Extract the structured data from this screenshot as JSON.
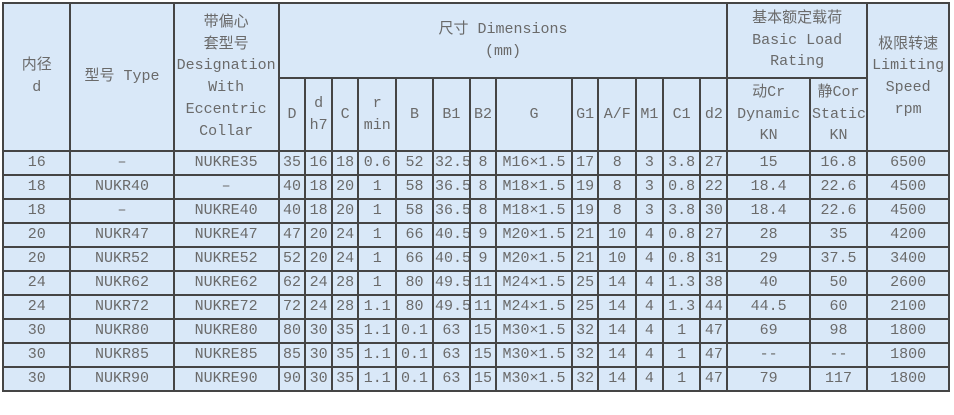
{
  "colors": {
    "table_background": "#d9e8f8",
    "border": "#454545",
    "text": "#6a6a6a"
  },
  "header": {
    "col_inner_diameter": "内径\nd",
    "col_type": "型号 Type",
    "col_designation": "带偏心\n套型号\nDesignation\nWith\nEccentric\nCollar",
    "col_dimensions": "尺寸 Dimensions\n(mm)",
    "col_basic_load": "基本额定载荷\nBasic Load\nRating",
    "col_limiting_speed": "极限转速\nLimiting\nSpeed\nrpm",
    "sub": [
      "D",
      "d\nh7",
      "C",
      "r\nmin",
      "B",
      "B1",
      "B2",
      "G",
      "G1",
      "A/F",
      "M1",
      "C1",
      "d2",
      "动Cr\nDynamic\nKN",
      "静Cor\nStatic\nKN"
    ]
  },
  "rows": [
    [
      "16",
      "–",
      "NUKRE35",
      "35",
      "16",
      "18",
      "0.6",
      "52",
      "32.5",
      "8",
      "M16×1.5",
      "17",
      "8",
      "3",
      "3.8",
      "27",
      "15",
      "16.8",
      "6500"
    ],
    [
      "18",
      "NUKR40",
      "–",
      "40",
      "18",
      "20",
      "1",
      "58",
      "36.5",
      "8",
      "M18×1.5",
      "19",
      "8",
      "3",
      "0.8",
      "22",
      "18.4",
      "22.6",
      "4500"
    ],
    [
      "18",
      "–",
      "NUKRE40",
      "40",
      "18",
      "20",
      "1",
      "58",
      "36.5",
      "8",
      "M18×1.5",
      "19",
      "8",
      "3",
      "3.8",
      "30",
      "18.4",
      "22.6",
      "4500"
    ],
    [
      "20",
      "NUKR47",
      "NUKRE47",
      "47",
      "20",
      "24",
      "1",
      "66",
      "40.5",
      "9",
      "M20×1.5",
      "21",
      "10",
      "4",
      "0.8",
      "27",
      "28",
      "35",
      "4200"
    ],
    [
      "20",
      "NUKR52",
      "NUKRE52",
      "52",
      "20",
      "24",
      "1",
      "66",
      "40.5",
      "9",
      "M20×1.5",
      "21",
      "10",
      "4",
      "0.8",
      "31",
      "29",
      "37.5",
      "3400"
    ],
    [
      "24",
      "NUKR62",
      "NUKRE62",
      "62",
      "24",
      "28",
      "1",
      "80",
      "49.5",
      "11",
      "M24×1.5",
      "25",
      "14",
      "4",
      "1.3",
      "38",
      "40",
      "50",
      "2600"
    ],
    [
      "24",
      "NUKR72",
      "NUKRE72",
      "72",
      "24",
      "28",
      "1.1",
      "80",
      "49.5",
      "11",
      "M24×1.5",
      "25",
      "14",
      "4",
      "1.3",
      "44",
      "44.5",
      "60",
      "2100"
    ],
    [
      "30",
      "NUKR80",
      "NUKRE80",
      "80",
      "30",
      "35",
      "1.1",
      "0.1",
      "63",
      "15",
      "M30×1.5",
      "32",
      "14",
      "4",
      "1",
      "47",
      "69",
      "98",
      "1800"
    ],
    [
      "30",
      "NUKR85",
      "NUKRE85",
      "85",
      "30",
      "35",
      "1.1",
      "0.1",
      "63",
      "15",
      "M30×1.5",
      "32",
      "14",
      "4",
      "1",
      "47",
      "--",
      "--",
      "1800"
    ],
    [
      "30",
      "NUKR90",
      "NUKRE90",
      "90",
      "30",
      "35",
      "1.1",
      "0.1",
      "63",
      "15",
      "M30×1.5",
      "32",
      "14",
      "4",
      "1",
      "47",
      "79",
      "117",
      "1800"
    ]
  ]
}
